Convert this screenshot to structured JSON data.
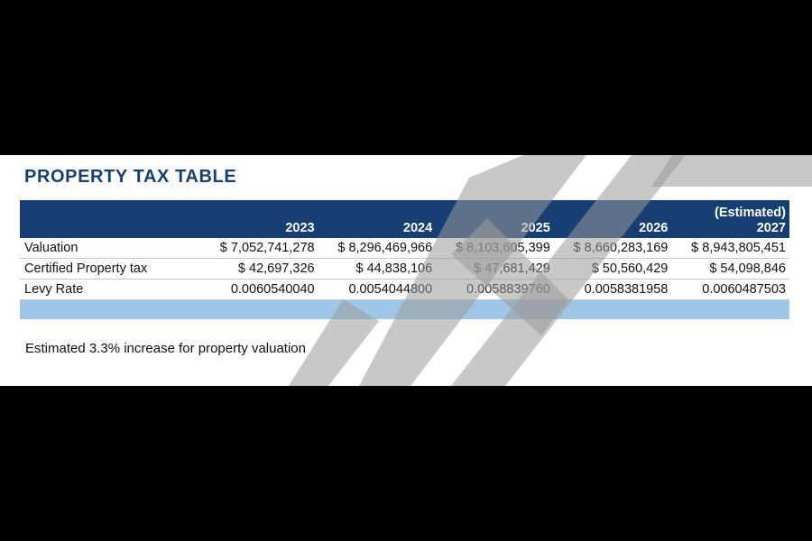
{
  "title": "PROPERTY TAX TABLE",
  "table": {
    "columns": [
      {
        "note": "",
        "year": "2023"
      },
      {
        "note": "",
        "year": "2024"
      },
      {
        "note": "",
        "year": "2025"
      },
      {
        "note": "",
        "year": "2026"
      },
      {
        "note": "(Estimated)",
        "year": "2027"
      }
    ],
    "rows": [
      {
        "label": "Valuation",
        "values": [
          "$ 7,052,741,278",
          "$ 8,296,469,966",
          "$ 8,103,605,399",
          "$ 8,660,283,169",
          "$ 8,943,805,451"
        ]
      },
      {
        "label": "Certified Property tax",
        "values": [
          "$ 42,697,326",
          "$ 44,838,106",
          "$ 47,681,429",
          "$ 50,560,429",
          "$ 54,098,846"
        ]
      },
      {
        "label": "Levy Rate",
        "values": [
          "0.0060540040",
          "0.0054044800",
          "0.0058839760",
          "0.0058381958",
          "0.0060487503"
        ]
      }
    ]
  },
  "footnote": "Estimated 3.3% increase for property valuation",
  "colors": {
    "header_bg": "#173f73",
    "title": "#173f73",
    "accent_row": "#9fc6e6",
    "watermark": "#c8c8c8"
  }
}
